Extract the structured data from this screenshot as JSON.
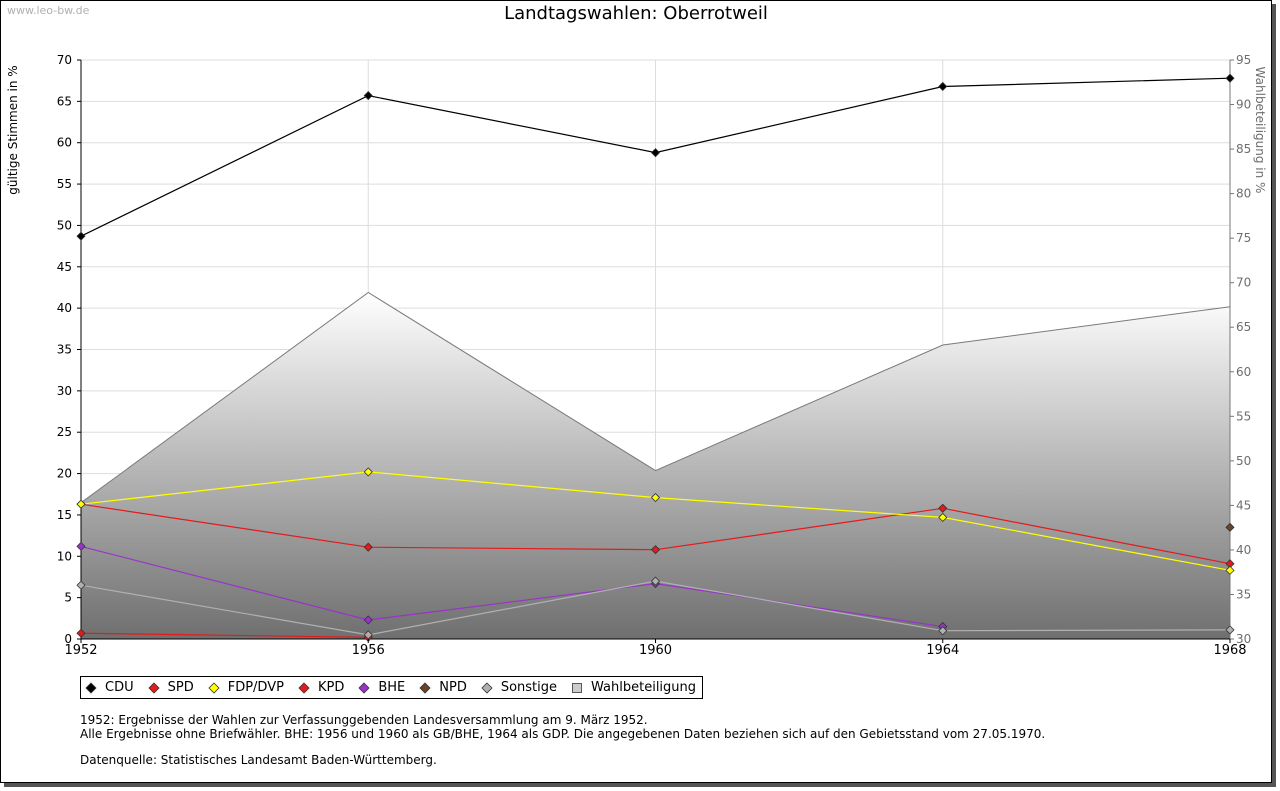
{
  "watermark": "www.leo-bw.de",
  "chart_data": {
    "type": "line",
    "title": "Landtagswahlen: Oberrotweil",
    "ylabel": "gültige Stimmen in %",
    "y2label": "Wahlbeteiligung in %",
    "x": [
      "1952",
      "1956",
      "1960",
      "1964",
      "1968"
    ],
    "ylim": [
      0,
      70
    ],
    "y2lim": [
      30,
      95
    ],
    "yticks": [
      0,
      5,
      10,
      15,
      20,
      25,
      30,
      35,
      40,
      45,
      50,
      55,
      60,
      65,
      70
    ],
    "y2ticks": [
      30,
      35,
      40,
      45,
      50,
      55,
      60,
      65,
      70,
      75,
      80,
      85,
      90,
      95
    ],
    "grid": true,
    "series": [
      {
        "name": "CDU",
        "color": "#000000",
        "values": [
          48.7,
          65.7,
          58.8,
          66.8,
          67.8
        ]
      },
      {
        "name": "SPD",
        "color": "#e41a1c",
        "values": [
          16.3,
          11.1,
          10.8,
          15.8,
          9.1
        ]
      },
      {
        "name": "FDP/DVP",
        "color": "#ffff00",
        "values": [
          16.3,
          20.2,
          17.1,
          14.7,
          8.3
        ]
      },
      {
        "name": "KPD",
        "color": "#e41a1c",
        "values": [
          0.7,
          0.2,
          null,
          null,
          null
        ]
      },
      {
        "name": "BHE",
        "color": "#9932cc",
        "values": [
          11.2,
          2.3,
          6.7,
          1.5,
          null
        ]
      },
      {
        "name": "NPD",
        "color": "#6b4226",
        "values": [
          null,
          null,
          null,
          null,
          13.5
        ]
      },
      {
        "name": "Sonstige",
        "color": "#b0b0b0",
        "values": [
          6.5,
          0.5,
          7.0,
          1.0,
          1.1
        ]
      }
    ],
    "turnout": {
      "name": "Wahlbeteiligung",
      "color": "#999999",
      "axis": "right",
      "values": [
        45.3,
        68.9,
        48.9,
        63.0,
        67.3
      ]
    }
  },
  "notes": [
    "1952: Ergebnisse der Wahlen zur Verfassunggebenden Landesversammlung am 9. März 1952.",
    "Alle Ergebnisse ohne Briefwähler. BHE: 1956 und 1960 als GB/BHE, 1964 als GDP. Die angegebenen Daten beziehen sich auf den Gebietsstand vom 27.05.1970.",
    "Datenquelle: Statistisches Landesamt Baden-Württemberg."
  ]
}
